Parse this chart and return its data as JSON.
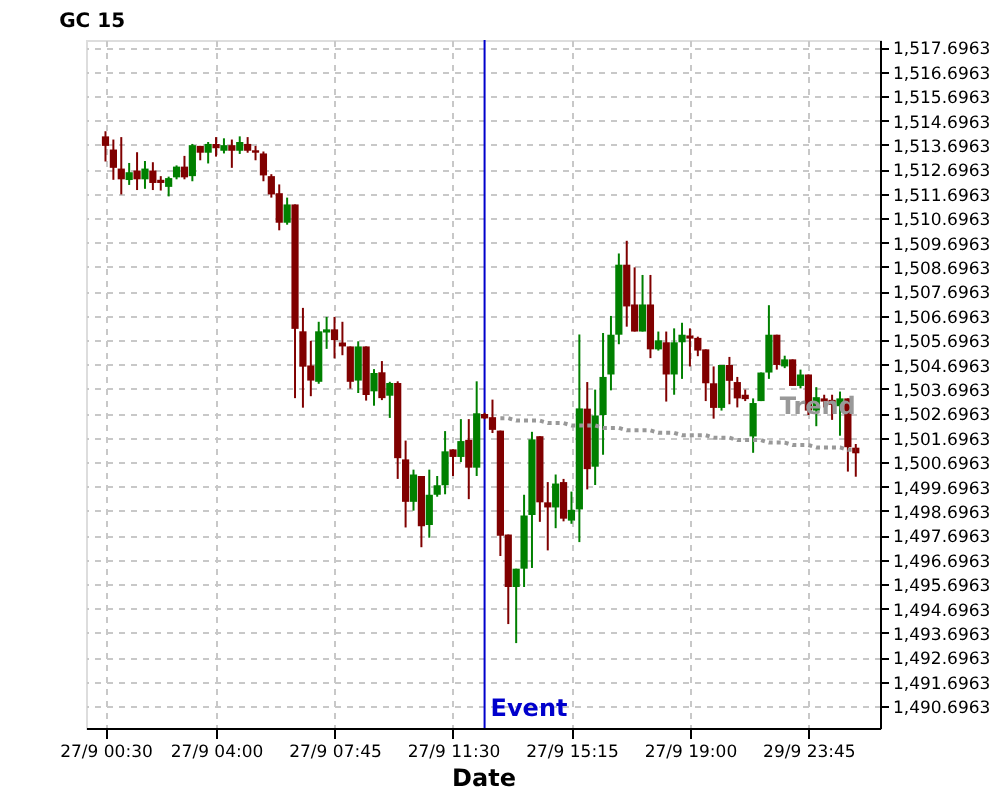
{
  "chart_data": {
    "type": "candlestick",
    "title": "GC 15",
    "xlabel": "Date",
    "categories": [
      "27/9 00:30",
      null,
      null,
      null,
      null,
      null,
      null,
      null,
      null,
      null,
      null,
      null,
      null,
      null,
      "27/9 04:00",
      null,
      null,
      null,
      null,
      null,
      null,
      null,
      null,
      null,
      null,
      null,
      null,
      null,
      null,
      "27/9 07:45",
      null,
      null,
      null,
      null,
      null,
      null,
      null,
      null,
      null,
      null,
      null,
      null,
      null,
      null,
      "27/9 11:30",
      null,
      null,
      null,
      null,
      null,
      null,
      null,
      null,
      null,
      null,
      null,
      null,
      null,
      null,
      "27/9 15:15",
      null,
      null,
      null,
      null,
      null,
      null,
      null,
      null,
      null,
      null,
      null,
      null,
      null,
      null,
      "27/9 19:00",
      null,
      null,
      null,
      null,
      null,
      null,
      null,
      null,
      null,
      null,
      null,
      null,
      null,
      null,
      "29/9 23:45",
      null,
      null,
      null,
      null,
      null,
      null
    ],
    "ohlc": [
      [
        1514.05,
        1514.26,
        1513.02,
        1513.66
      ],
      [
        1513.51,
        1513.92,
        1512.27,
        1512.76
      ],
      [
        1512.73,
        1514.02,
        1511.67,
        1512.29
      ],
      [
        1512.26,
        1512.96,
        1512.06,
        1512.58
      ],
      [
        1512.65,
        1513.4,
        1511.85,
        1512.29
      ],
      [
        1512.29,
        1513.04,
        1511.9,
        1512.73
      ],
      [
        1512.65,
        1512.99,
        1511.85,
        1512.14
      ],
      [
        1512.27,
        1512.42,
        1511.83,
        1512.14
      ],
      [
        1511.98,
        1512.4,
        1511.59,
        1512.34
      ],
      [
        1512.37,
        1512.86,
        1512.29,
        1512.81
      ],
      [
        1512.81,
        1513.25,
        1512.29,
        1512.37
      ],
      [
        1512.42,
        1513.74,
        1512.21,
        1513.69
      ],
      [
        1513.66,
        1513.66,
        1513.07,
        1513.38
      ],
      [
        1513.38,
        1513.82,
        1512.94,
        1513.74
      ],
      [
        1513.74,
        1514.02,
        1513.22,
        1513.56
      ],
      [
        1513.46,
        1513.97,
        1513.35,
        1513.69
      ],
      [
        1513.69,
        1513.92,
        1512.76,
        1513.46
      ],
      [
        1513.46,
        1514.05,
        1513.33,
        1513.82
      ],
      [
        1513.74,
        1514.02,
        1513.38,
        1513.46
      ],
      [
        1513.48,
        1513.66,
        1513.07,
        1513.38
      ],
      [
        1513.35,
        1513.43,
        1512.21,
        1512.45
      ],
      [
        1512.42,
        1512.5,
        1511.54,
        1511.67
      ],
      [
        1511.72,
        1512.08,
        1510.2,
        1510.51
      ],
      [
        1510.51,
        1511.54,
        1510.43,
        1511.26
      ],
      [
        1511.26,
        1511.26,
        1503.32,
        1506.16
      ],
      [
        1506.06,
        1507.02,
        1502.93,
        1504.61
      ],
      [
        1504.66,
        1505.67,
        1503.4,
        1504.04
      ],
      [
        1503.99,
        1506.45,
        1503.91,
        1506.06
      ],
      [
        1506.01,
        1506.65,
        1505.34,
        1506.14
      ],
      [
        1506.14,
        1506.65,
        1504.95,
        1505.7
      ],
      [
        1505.6,
        1506.45,
        1505.08,
        1505.44
      ],
      [
        1505.44,
        1505.44,
        1503.71,
        1503.99
      ],
      [
        1504.04,
        1505.65,
        1503.53,
        1505.44
      ],
      [
        1505.44,
        1505.44,
        1503.22,
        1503.45
      ],
      [
        1503.6,
        1504.51,
        1503.01,
        1504.35
      ],
      [
        1504.38,
        1504.84,
        1503.24,
        1503.32
      ],
      [
        1503.42,
        1503.99,
        1502.51,
        1503.94
      ],
      [
        1503.94,
        1504.01,
        1500.01,
        1500.86
      ],
      [
        1500.81,
        1501.58,
        1498.02,
        1499.07
      ],
      [
        1499.07,
        1500.39,
        1498.71,
        1500.19
      ],
      [
        1500.13,
        1500.13,
        1497.21,
        1498.07
      ],
      [
        1498.12,
        1500.39,
        1497.6,
        1499.36
      ],
      [
        1499.36,
        1500.13,
        1499.28,
        1499.75
      ],
      [
        1499.75,
        1501.97,
        1499.38,
        1501.14
      ],
      [
        1501.22,
        1501.22,
        1500.13,
        1500.91
      ],
      [
        1500.91,
        1502.46,
        1500.7,
        1501.56
      ],
      [
        1501.61,
        1502.46,
        1499.18,
        1500.47
      ],
      [
        1500.47,
        1504.01,
        1500.13,
        1502.7
      ],
      [
        1502.67,
        1502.72,
        1502.46,
        1502.49
      ],
      [
        1502.54,
        1503.26,
        1501.89,
        1502.02
      ],
      [
        1501.99,
        1501.99,
        1496.85,
        1497.68
      ],
      [
        1497.73,
        1497.73,
        1494.06,
        1495.58
      ],
      [
        1495.58,
        1496.33,
        1493.28,
        1496.33
      ],
      [
        1496.33,
        1499.36,
        1495.58,
        1498.51
      ],
      [
        1498.53,
        1501.94,
        1496.36,
        1501.63
      ],
      [
        1501.76,
        1501.76,
        1498.25,
        1499.05
      ],
      [
        1499.05,
        1499.88,
        1497.08,
        1498.84
      ],
      [
        1498.84,
        1500.19,
        1497.99,
        1499.82
      ],
      [
        1499.88,
        1500.01,
        1498.27,
        1498.38
      ],
      [
        1498.3,
        1499.49,
        1498.17,
        1498.74
      ],
      [
        1498.76,
        1505.93,
        1497.42,
        1502.9
      ],
      [
        1502.89,
        1503.98,
        1499.58,
        1500.41
      ],
      [
        1500.51,
        1503.67,
        1499.76,
        1502.61
      ],
      [
        1502.63,
        1505.99,
        1501.0,
        1504.19
      ],
      [
        1504.29,
        1506.69,
        1503.64,
        1505.92
      ],
      [
        1505.92,
        1509.25,
        1505.53,
        1508.79
      ],
      [
        1508.79,
        1509.77,
        1506.25,
        1507.08
      ],
      [
        1507.16,
        1508.68,
        1506.05,
        1506.05
      ],
      [
        1506.05,
        1508.37,
        1506.05,
        1507.16
      ],
      [
        1507.16,
        1508.37,
        1504.96,
        1505.32
      ],
      [
        1505.32,
        1506.05,
        1505.27,
        1505.69
      ],
      [
        1505.61,
        1506.05,
        1503.18,
        1504.29
      ],
      [
        1504.29,
        1506.18,
        1503.46,
        1505.61
      ],
      [
        1505.61,
        1506.41,
        1504.11,
        1505.92
      ],
      [
        1505.89,
        1506.18,
        1504.62,
        1505.76
      ],
      [
        1505.79,
        1505.84,
        1505.04,
        1505.27
      ],
      [
        1505.32,
        1505.32,
        1503.2,
        1503.93
      ],
      [
        1503.93,
        1504.62,
        1502.48,
        1502.92
      ],
      [
        1502.92,
        1504.68,
        1502.81,
        1504.68
      ],
      [
        1504.68,
        1505.01,
        1503.07,
        1504.03
      ],
      [
        1503.98,
        1504.19,
        1502.94,
        1503.31
      ],
      [
        1503.46,
        1503.67,
        1503.2,
        1503.28
      ],
      [
        1501.75,
        1503.31,
        1501.08,
        1503.12
      ],
      [
        1503.2,
        1504.37,
        1503.2,
        1504.37
      ],
      [
        1504.37,
        1507.13,
        1504.11,
        1505.92
      ],
      [
        1505.92,
        1505.92,
        1504.49,
        1504.68
      ],
      [
        1504.62,
        1505.06,
        1504.55,
        1504.91
      ],
      [
        1504.91,
        1504.91,
        1503.82,
        1503.82
      ],
      [
        1503.82,
        1504.49,
        1503.72,
        1504.29
      ],
      [
        1504.29,
        1504.29,
        1502.63,
        1502.81
      ],
      [
        1502.81,
        1503.77,
        1502.17,
        1503.36
      ],
      [
        1503.31,
        1503.46,
        1502.94,
        1503.18
      ],
      [
        1503.25,
        1503.46,
        1502.43,
        1503.05
      ],
      [
        1502.99,
        1503.59,
        1501.78,
        1503.31
      ],
      [
        1503.31,
        1503.31,
        1500.31,
        1501.31
      ],
      [
        1501.29,
        1501.44,
        1500.1,
        1501.06
      ]
    ],
    "colors": [
      "#800000",
      "#800000",
      "#800000",
      "#008000",
      "#800000",
      "#008000",
      "#800000",
      "#800000",
      "#008000",
      "#008000",
      "#800000",
      "#008000",
      "#800000",
      "#008000",
      "#800000",
      "#008000",
      "#800000",
      "#008000",
      "#800000",
      "#800000",
      "#800000",
      "#800000",
      "#800000",
      "#008000",
      "#800000",
      "#800000",
      "#800000",
      "#008000",
      "#008000",
      "#800000",
      "#800000",
      "#800000",
      "#008000",
      "#800000",
      "#008000",
      "#800000",
      "#008000",
      "#800000",
      "#800000",
      "#008000",
      "#800000",
      "#008000",
      "#008000",
      "#008000",
      "#800000",
      "#008000",
      "#800000",
      "#008000",
      "#800000",
      "#800000",
      "#800000",
      "#800000",
      "#008000",
      "#008000",
      "#008000",
      "#800000",
      "#800000",
      "#008000",
      "#800000",
      "#008000",
      "#008000",
      "#800000",
      "#008000",
      "#008000",
      "#008000",
      "#008000",
      "#800000",
      "#800000",
      "#008000",
      "#800000",
      "#008000",
      "#800000",
      "#008000",
      "#008000",
      "#800000",
      "#800000",
      "#800000",
      "#800000",
      "#008000",
      "#800000",
      "#800000",
      "#800000",
      "#008000",
      "#008000",
      "#008000",
      "#800000",
      "#008000",
      "#800000",
      "#008000",
      "#800000",
      "#008000",
      "#800000",
      "#800000",
      "#008000",
      "#800000",
      "#800000"
    ],
    "series": [
      {
        "type": "line",
        "name": "Trend",
        "color": "#999999",
        "line_style": "dotted",
        "values": [
          null,
          null,
          null,
          null,
          null,
          null,
          null,
          null,
          null,
          null,
          null,
          null,
          null,
          null,
          null,
          null,
          null,
          null,
          null,
          null,
          null,
          null,
          null,
          null,
          null,
          null,
          null,
          null,
          null,
          null,
          null,
          null,
          null,
          null,
          null,
          null,
          null,
          null,
          null,
          null,
          null,
          null,
          null,
          null,
          null,
          null,
          null,
          null,
          null,
          null,
          1502.5,
          1502.5,
          1502.4,
          1502.4,
          1502.4,
          1502.4,
          1502.3,
          1502.3,
          1502.3,
          1502.2,
          1502.2,
          1502.2,
          1502.2,
          1502.1,
          1502.1,
          1502.1,
          1502.0,
          1502.0,
          1502.0,
          1502.0,
          1501.9,
          1501.9,
          1501.9,
          1501.8,
          1501.8,
          1501.8,
          1501.8,
          1501.7,
          1501.7,
          1501.7,
          1501.6,
          1501.6,
          1501.6,
          1501.6,
          1501.5,
          1501.5,
          1501.5,
          1501.4,
          1501.4,
          1501.4,
          1501.3,
          1501.3,
          1501.3,
          1501.3,
          1501.2,
          1501.2
        ]
      }
    ],
    "annotations": [
      "Event"
    ],
    "ylim": [
      1489.8,
      1518.0
    ],
    "yticks": [
      {
        "value": 1490.6963,
        "label": "1,490.6963"
      },
      {
        "value": 1491.6963,
        "label": "1,491.6963"
      },
      {
        "value": 1492.6963,
        "label": "1,492.6963"
      },
      {
        "value": 1493.6963,
        "label": "1,493.6963"
      },
      {
        "value": 1494.6963,
        "label": "1,494.6963"
      },
      {
        "value": 1495.6963,
        "label": "1,495.6963"
      },
      {
        "value": 1496.6963,
        "label": "1,496.6963"
      },
      {
        "value": 1497.6963,
        "label": "1,497.6963"
      },
      {
        "value": 1498.6963,
        "label": "1,498.6963"
      },
      {
        "value": 1499.6963,
        "label": "1,499.6963"
      },
      {
        "value": 1500.6963,
        "label": "1,500.6963"
      },
      {
        "value": 1501.6963,
        "label": "1,501.6963"
      },
      {
        "value": 1502.6963,
        "label": "1,502.6963"
      },
      {
        "value": 1503.6963,
        "label": "1,503.6963"
      },
      {
        "value": 1504.6963,
        "label": "1,504.6963"
      },
      {
        "value": 1505.6963,
        "label": "1,505.6963"
      },
      {
        "value": 1506.6963,
        "label": "1,506.6963"
      },
      {
        "value": 1507.6963,
        "label": "1,507.6963"
      },
      {
        "value": 1508.6963,
        "label": "1,508.6963"
      },
      {
        "value": 1509.6963,
        "label": "1,509.6963"
      },
      {
        "value": 1510.6963,
        "label": "1,510.6963"
      },
      {
        "value": 1511.6963,
        "label": "1,511.6963"
      },
      {
        "value": 1512.6963,
        "label": "1,512.6963"
      },
      {
        "value": 1513.6963,
        "label": "1,513.6963"
      },
      {
        "value": 1514.6963,
        "label": "1,514.6963"
      },
      {
        "value": 1515.6963,
        "label": "1,515.6963"
      },
      {
        "value": 1516.6963,
        "label": "1,516.6963"
      },
      {
        "value": 1517.6963,
        "label": "1,517.6963"
      }
    ],
    "grid": true
  }
}
